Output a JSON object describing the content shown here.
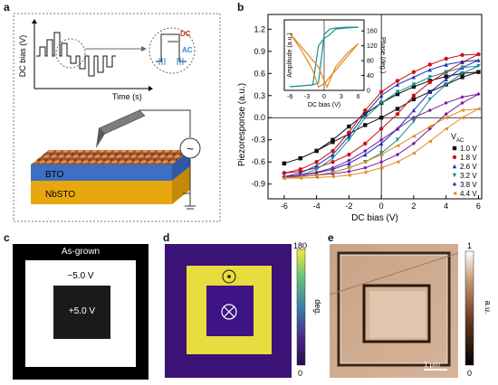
{
  "panels": {
    "a": {
      "letter": "a",
      "ylabel": "DC bias (V)",
      "xlabel": "Time (s)",
      "inset_dc": "DC",
      "inset_ac": "AC",
      "layer_top": "BTO",
      "layer_bottom": "NbSTO",
      "source_symbol": "~"
    },
    "b": {
      "letter": "b",
      "legend_title": "V",
      "legend_sub": "AC",
      "inset": {
        "ylabel_left": "Amplitude (a.u.)",
        "ylabel_right": "Phase (deg.)",
        "xlabel": "DC bias (V)",
        "xticks": [
          "-6",
          "-3",
          "0",
          "3",
          "6"
        ],
        "yticks_right": [
          "0",
          "40",
          "80",
          "120",
          "160"
        ]
      }
    },
    "c": {
      "letter": "c",
      "label_top": "As-grown",
      "label_mid": "−5.0 V",
      "label_inner": "+5.0 V"
    },
    "d": {
      "letter": "d",
      "cbar_max": "180",
      "cbar_min": "0",
      "cbar_label": "deg."
    },
    "e": {
      "letter": "e",
      "cbar_max": "1",
      "cbar_min": "0",
      "cbar_label": "a.u.",
      "scalebar": "1 μm"
    }
  },
  "chart_data": {
    "type": "line",
    "title": "",
    "xlabel": "DC bias (V)",
    "ylabel": "Piezoresponse (a.u.)",
    "xlim": [
      -7,
      6.2
    ],
    "ylim": [
      -1.1,
      1.4
    ],
    "xticks": [
      -6,
      -4,
      -2,
      0,
      2,
      4,
      6
    ],
    "yticks": [
      -0.9,
      -0.6,
      -0.3,
      0.0,
      0.3,
      0.6,
      0.9,
      1.2
    ],
    "legend_placement": "right",
    "series": [
      {
        "name": "1.0 V",
        "color": "#111111",
        "marker": "square",
        "x": [
          -6,
          -5,
          -4,
          -3,
          -2,
          -1,
          0,
          1,
          2,
          3,
          4,
          5,
          6,
          5,
          4,
          3,
          2,
          1,
          0,
          -1,
          -2,
          -3,
          -4,
          -5,
          -6
        ],
        "y": [
          -0.62,
          -0.55,
          -0.45,
          -0.3,
          -0.12,
          0.05,
          0.2,
          0.32,
          0.42,
          0.5,
          0.56,
          0.6,
          0.62,
          0.55,
          0.45,
          0.35,
          0.25,
          0.12,
          0.0,
          -0.1,
          -0.22,
          -0.33,
          -0.45,
          -0.55,
          -0.62
        ]
      },
      {
        "name": "1.8 V",
        "color": "#cc1111",
        "marker": "circle",
        "x": [
          -6,
          -5,
          -4,
          -3,
          -2,
          -1,
          0,
          1,
          2,
          3,
          4,
          5,
          6,
          5,
          4,
          3,
          2,
          1,
          0,
          -1,
          -2,
          -3,
          -4,
          -5,
          -6
        ],
        "y": [
          -0.75,
          -0.7,
          -0.6,
          -0.45,
          -0.2,
          0.1,
          0.35,
          0.5,
          0.62,
          0.72,
          0.8,
          0.85,
          0.86,
          0.75,
          0.62,
          0.48,
          0.3,
          0.05,
          -0.15,
          -0.35,
          -0.5,
          -0.6,
          -0.68,
          -0.73,
          -0.75
        ]
      },
      {
        "name": "2.6 V",
        "color": "#1f2fb5",
        "marker": "triangle",
        "x": [
          -6,
          -5,
          -4,
          -3,
          -2,
          -1,
          0,
          1,
          2,
          3,
          4,
          5,
          6,
          5,
          4,
          3,
          2,
          1,
          0,
          -1,
          -2,
          -3,
          -4,
          -5,
          -6
        ],
        "y": [
          -0.8,
          -0.75,
          -0.65,
          -0.5,
          -0.25,
          0.05,
          0.3,
          0.45,
          0.55,
          0.65,
          0.72,
          0.76,
          0.78,
          0.68,
          0.52,
          0.35,
          0.1,
          -0.15,
          -0.35,
          -0.5,
          -0.62,
          -0.7,
          -0.75,
          -0.78,
          -0.8
        ]
      },
      {
        "name": "3.2 V",
        "color": "#1b8f8f",
        "marker": "triangle-down",
        "x": [
          -6,
          -5,
          -4,
          -3,
          -2,
          -1,
          0,
          1,
          2,
          3,
          4,
          5,
          6,
          5,
          4,
          3,
          2,
          1,
          0,
          -1,
          -2,
          -3,
          -4,
          -5,
          -6
        ],
        "y": [
          -0.82,
          -0.78,
          -0.7,
          -0.55,
          -0.3,
          0.0,
          0.2,
          0.35,
          0.45,
          0.55,
          0.62,
          0.68,
          0.7,
          0.6,
          0.45,
          0.25,
          -0.05,
          -0.3,
          -0.48,
          -0.6,
          -0.68,
          -0.74,
          -0.78,
          -0.8,
          -0.82
        ]
      },
      {
        "name": "3.8 V",
        "color": "#7a1f9c",
        "marker": "diamond",
        "x": [
          -6,
          -5,
          -4,
          -3,
          -2,
          -1,
          0,
          1,
          2,
          3,
          4,
          5,
          6,
          5,
          4,
          3,
          2,
          1,
          0,
          -1,
          -2,
          -3,
          -4,
          -5,
          -6
        ],
        "y": [
          -0.8,
          -0.78,
          -0.74,
          -0.68,
          -0.58,
          -0.45,
          -0.3,
          -0.15,
          0.0,
          0.1,
          0.2,
          0.28,
          0.32,
          0.2,
          0.05,
          -0.15,
          -0.35,
          -0.5,
          -0.6,
          -0.68,
          -0.73,
          -0.76,
          -0.78,
          -0.79,
          -0.8
        ]
      },
      {
        "name": "4.4 V",
        "color": "#e08a1f",
        "marker": "triangle-left",
        "x": [
          -6,
          -5,
          -4,
          -3,
          -2,
          -1,
          0,
          1,
          2,
          3,
          4,
          5,
          6,
          5,
          4,
          3,
          2,
          1,
          0,
          -1,
          -2,
          -3,
          -4,
          -5,
          -6
        ],
        "y": [
          -0.82,
          -0.8,
          -0.78,
          -0.74,
          -0.68,
          -0.6,
          -0.5,
          -0.38,
          -0.25,
          -0.12,
          0.0,
          0.1,
          0.12,
          0.0,
          -0.15,
          -0.32,
          -0.48,
          -0.6,
          -0.68,
          -0.74,
          -0.78,
          -0.8,
          -0.81,
          -0.82,
          -0.82
        ]
      }
    ]
  },
  "inset_data": {
    "type": "line",
    "xlim": [
      -7,
      7
    ],
    "phase_lim": [
      0,
      180
    ],
    "amp_lim": [
      0,
      1
    ],
    "phase_series": [
      {
        "name": "phase-forward",
        "color": "#1b8f8f",
        "x": [
          -6,
          -4,
          -2,
          -1,
          0,
          1,
          2,
          4,
          6
        ],
        "y": [
          10,
          12,
          15,
          20,
          150,
          165,
          168,
          170,
          170
        ]
      },
      {
        "name": "phase-reverse",
        "color": "#1b8f8f",
        "x": [
          6,
          4,
          2,
          1,
          0,
          -1,
          -2,
          -4,
          -6
        ],
        "y": [
          170,
          168,
          165,
          150,
          140,
          120,
          15,
          12,
          10
        ]
      }
    ],
    "amp_series": [
      {
        "name": "amp-forward",
        "color": "#e08a1f",
        "x": [
          -6,
          -4,
          -2,
          -1,
          0,
          0.5,
          1,
          2,
          4,
          6
        ],
        "y": [
          0.85,
          0.65,
          0.45,
          0.35,
          0.15,
          0.05,
          0.15,
          0.35,
          0.55,
          0.7
        ]
      },
      {
        "name": "amp-reverse",
        "color": "#e08a1f",
        "x": [
          6,
          4,
          2,
          1,
          0,
          -1,
          -2,
          -4,
          -6
        ],
        "y": [
          0.7,
          0.5,
          0.3,
          0.2,
          0.1,
          0.05,
          0.3,
          0.6,
          0.85
        ]
      }
    ]
  }
}
